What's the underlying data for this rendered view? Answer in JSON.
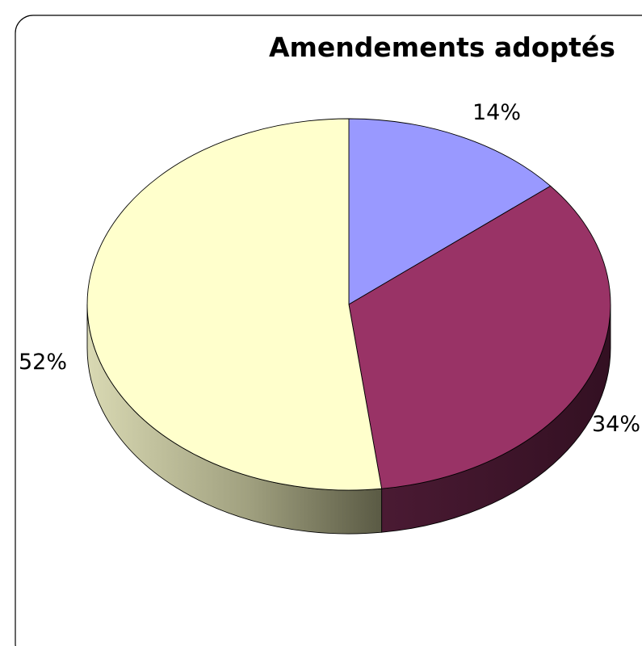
{
  "chart_data": {
    "type": "pie",
    "style": "3d",
    "title": "Amendements adoptés",
    "values": [
      14,
      34,
      52
    ],
    "data_labels": [
      "14%",
      "34%",
      "52%"
    ],
    "colors": [
      "#9999ff",
      "#993366",
      "#ffffcc"
    ],
    "side_colors": [
      "#5c5c99",
      "#3d1429",
      "#9a9a7a"
    ],
    "legend": "none",
    "grid": false
  }
}
